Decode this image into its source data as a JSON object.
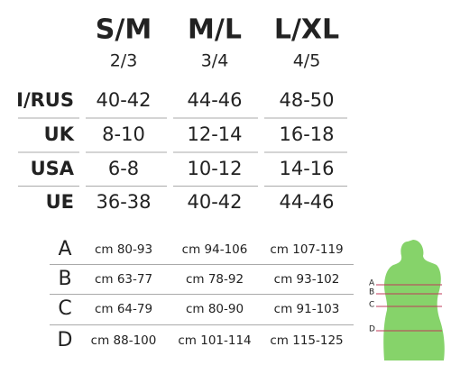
{
  "header": {
    "sizes": [
      {
        "name": "S/M",
        "sub": "2/3"
      },
      {
        "name": "M/L",
        "sub": "3/4"
      },
      {
        "name": "L/XL",
        "sub": "4/5"
      }
    ]
  },
  "table": {
    "rows": [
      [
        "I/RUS",
        "40-42",
        "44-46",
        "48-50"
      ],
      [
        "UK",
        "8-10",
        "12-14",
        "16-18"
      ],
      [
        "USA",
        "6-8",
        "10-12",
        "14-16"
      ],
      [
        "UE",
        "36-38",
        "40-42",
        "44-46"
      ]
    ]
  },
  "measurements": {
    "rows": [
      [
        "A",
        "cm 80-93",
        "cm 94-106",
        "cm 107-119"
      ],
      [
        "B",
        "cm 63-77",
        "cm 78-92",
        "cm 93-102"
      ],
      [
        "C",
        "cm 64-79",
        "cm 80-90",
        "cm 91-103"
      ],
      [
        "D",
        "cm 88-100",
        "cm 101-114",
        "cm 115-125"
      ]
    ]
  },
  "figure": {
    "labels": [
      "A",
      "B",
      "C",
      "D"
    ]
  }
}
